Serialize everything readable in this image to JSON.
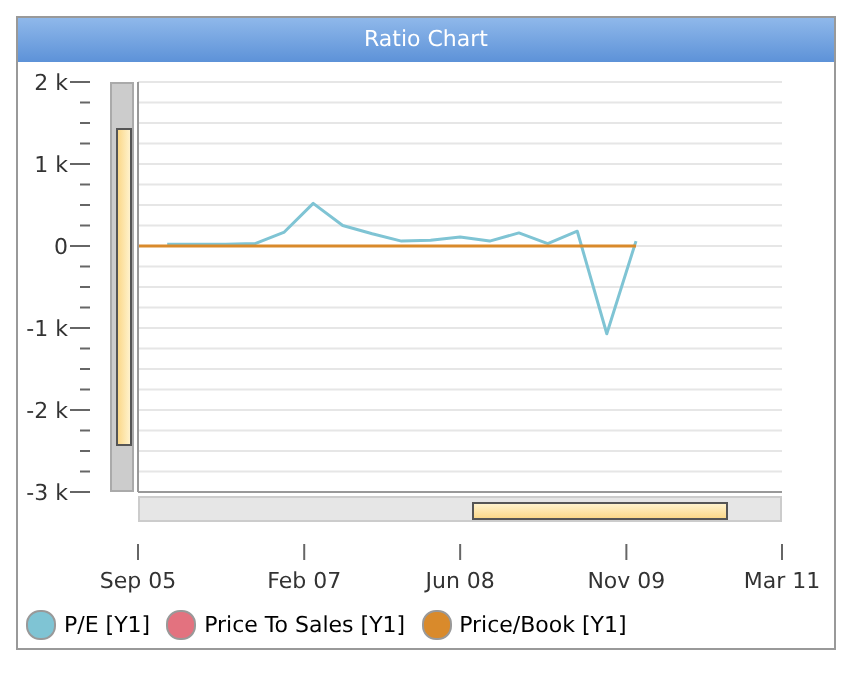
{
  "chart_data": {
    "type": "line",
    "title": "Ratio Chart",
    "x": [
      "2005-09-01",
      "2005-12-01",
      "2006-03-01",
      "2006-06-01",
      "2006-09-01",
      "2006-12-01",
      "2007-03-01",
      "2007-06-01",
      "2007-09-01",
      "2007-12-01",
      "2008-03-01",
      "2008-06-01",
      "2008-09-01",
      "2008-12-01",
      "2009-03-01",
      "2009-06-01",
      "2009-09-01",
      "2009-12-01"
    ],
    "series": [
      {
        "name": "P/E [Y1]",
        "color": "#7fc4d4",
        "values": [
          null,
          20,
          20,
          20,
          30,
          170,
          520,
          250,
          150,
          60,
          70,
          110,
          60,
          160,
          30,
          180,
          -1070,
          60
        ]
      },
      {
        "name": "Price To Sales [Y1]",
        "color": "#e3727f",
        "values": [
          null,
          null,
          null,
          null,
          null,
          null,
          null,
          null,
          null,
          null,
          null,
          null,
          null,
          null,
          null,
          null,
          null,
          null
        ]
      },
      {
        "name": "Price/Book [Y1]",
        "color": "#d98a2b",
        "values": [
          0,
          0,
          0,
          0,
          0,
          0,
          0,
          0,
          0,
          0,
          0,
          0,
          0,
          0,
          0,
          0,
          0,
          0
        ]
      }
    ],
    "xlim": [
      "2005-09-01",
      "2011-03-01"
    ],
    "xticks": [
      {
        "value": "2005-09-01",
        "label": "Sep 05"
      },
      {
        "value": "2007-02-01",
        "label": "Feb 07"
      },
      {
        "value": "2008-06-01",
        "label": "Jun 08"
      },
      {
        "value": "2009-11-01",
        "label": "Nov 09"
      },
      {
        "value": "2011-03-01",
        "label": "Mar 11"
      }
    ],
    "ylim": [
      -3000,
      2000
    ],
    "yticks": [
      {
        "value": -3000,
        "label": "-3 k"
      },
      {
        "value": -2750,
        "label": null
      },
      {
        "value": -2500,
        "label": null
      },
      {
        "value": -2250,
        "label": null
      },
      {
        "value": -2000,
        "label": "-2 k"
      },
      {
        "value": -1750,
        "label": null
      },
      {
        "value": -1500,
        "label": null
      },
      {
        "value": -1250,
        "label": null
      },
      {
        "value": -1000,
        "label": "-1 k"
      },
      {
        "value": -750,
        "label": null
      },
      {
        "value": -500,
        "label": null
      },
      {
        "value": -250,
        "label": null
      },
      {
        "value": 0,
        "label": "0"
      },
      {
        "value": 250,
        "label": null
      },
      {
        "value": 500,
        "label": null
      },
      {
        "value": 750,
        "label": null
      },
      {
        "value": 1000,
        "label": "1 k"
      },
      {
        "value": 1250,
        "label": null
      },
      {
        "value": 1500,
        "label": null
      },
      {
        "value": 1750,
        "label": null
      },
      {
        "value": 2000,
        "label": "2 k"
      }
    ],
    "grid": "y",
    "legend": "bottom",
    "marker": "none",
    "line_style": "solid"
  }
}
